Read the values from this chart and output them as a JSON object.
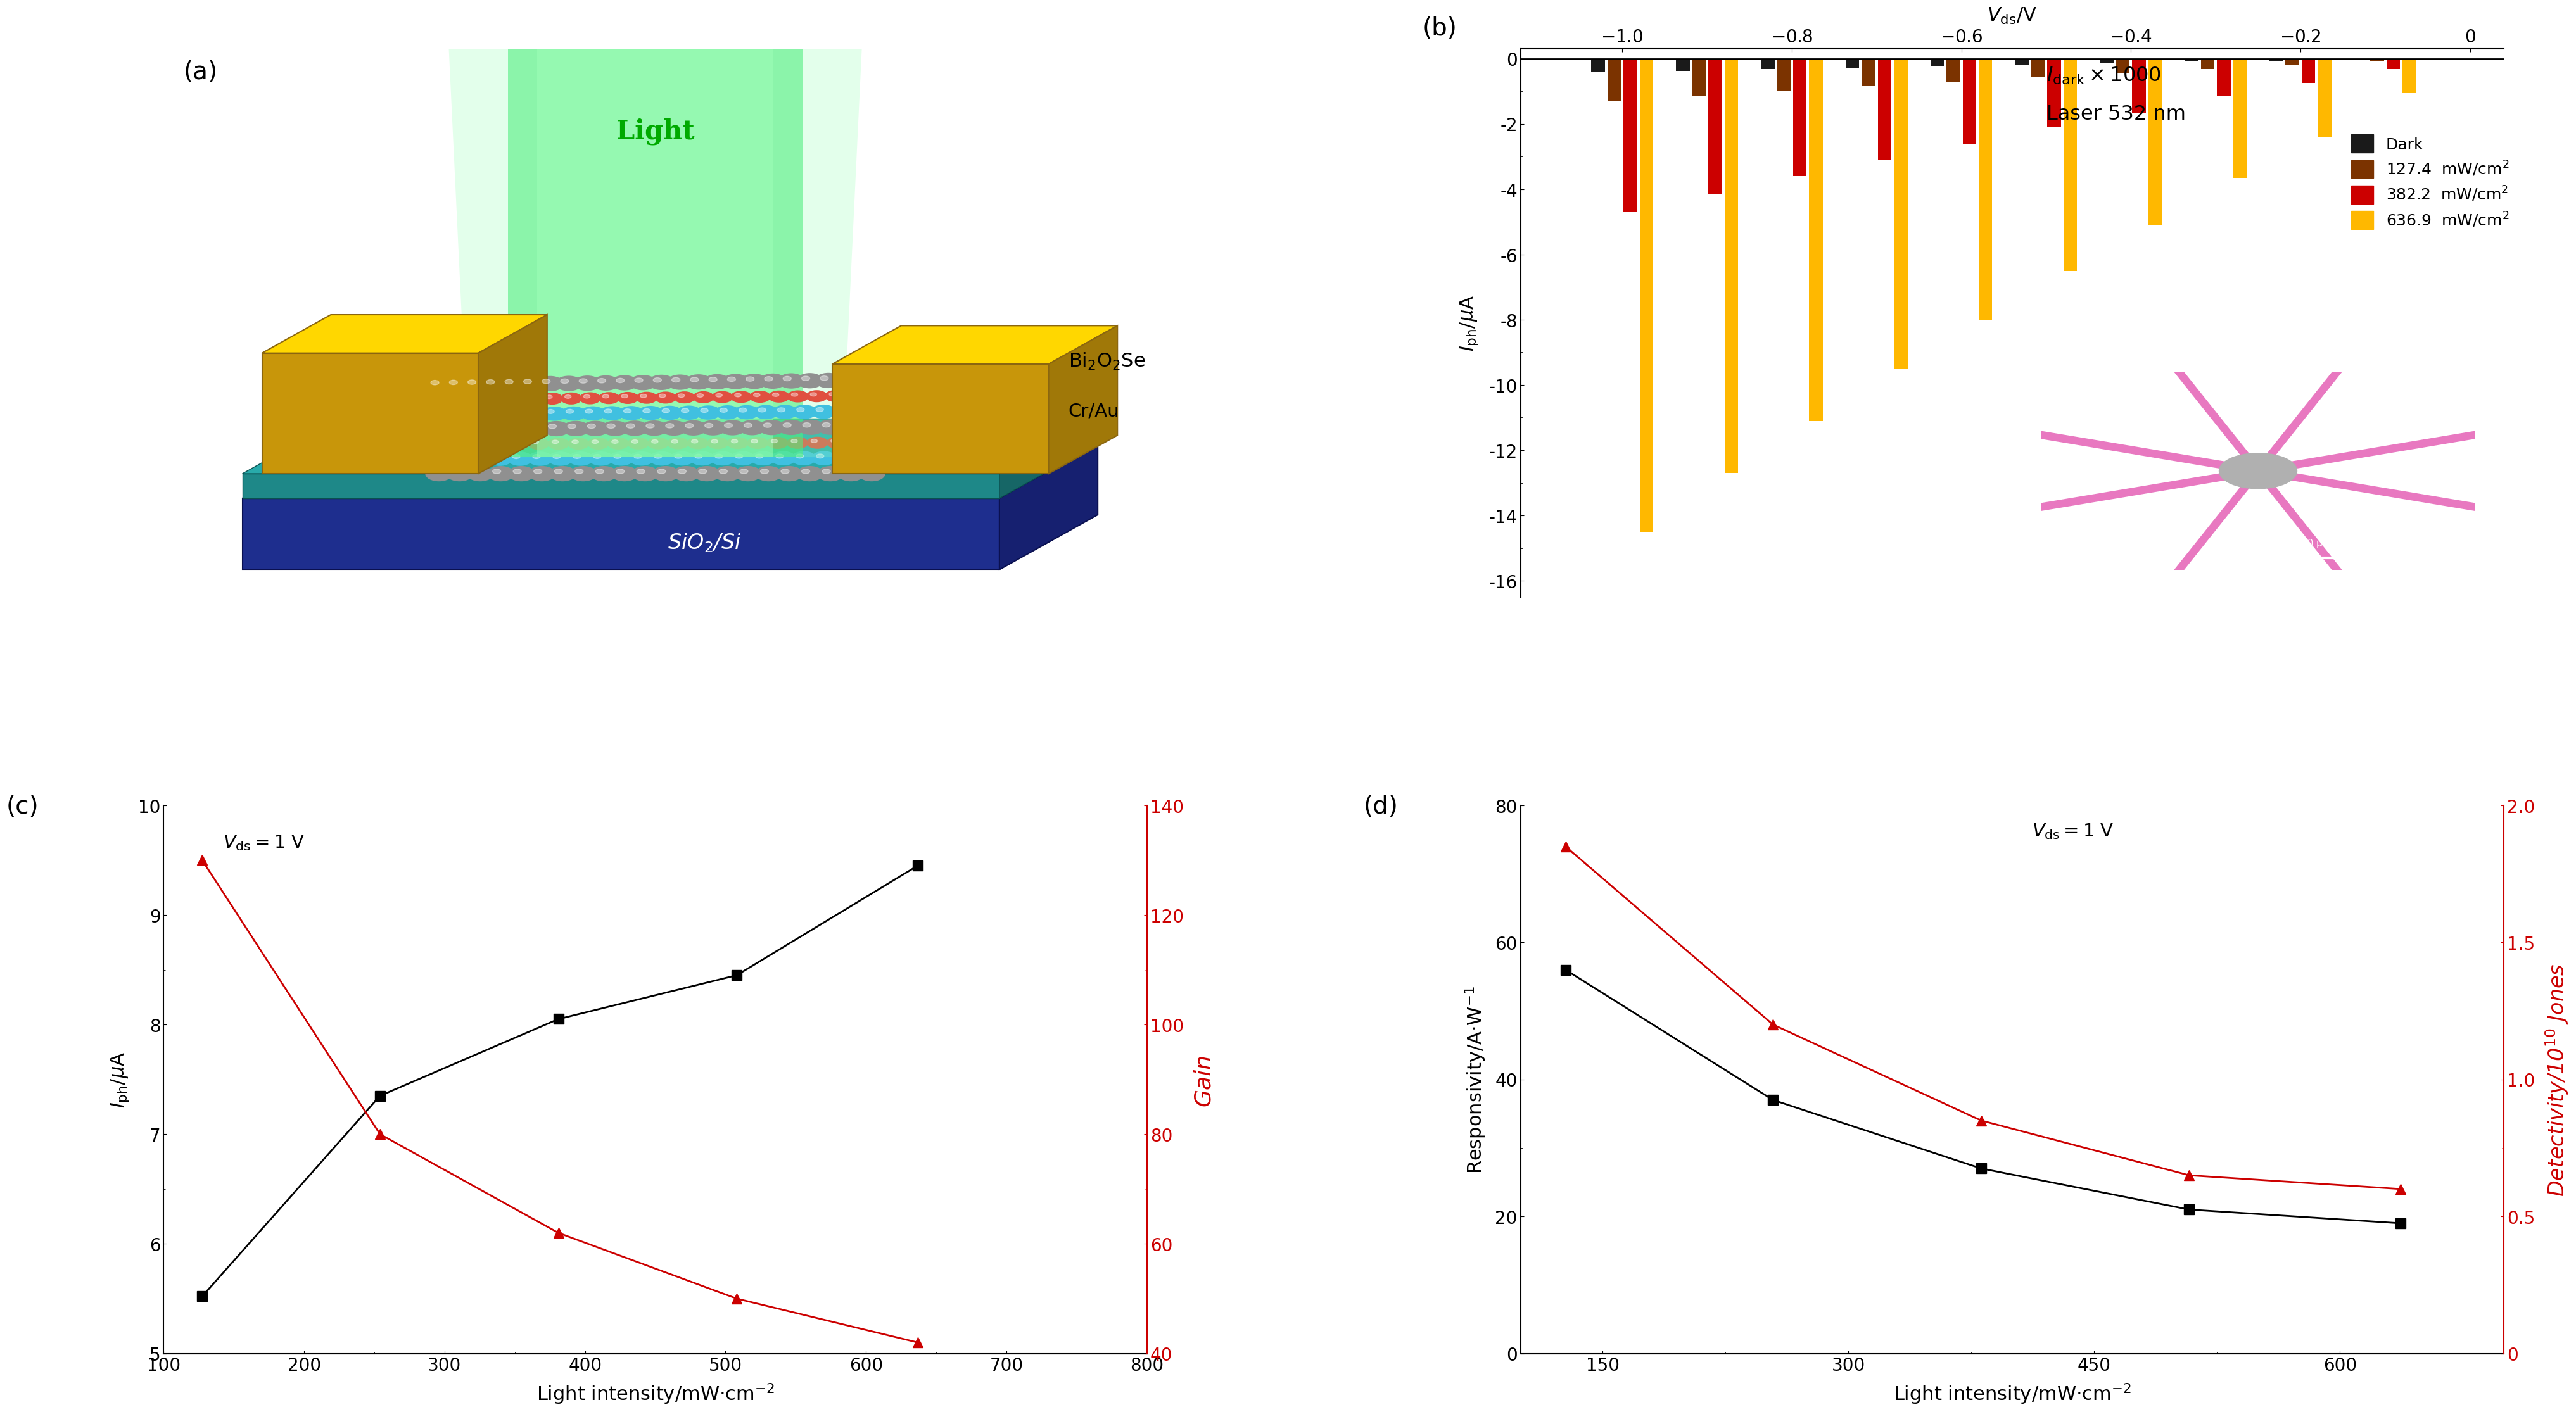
{
  "panel_b": {
    "vds_values": [
      -1.0,
      -0.9,
      -0.8,
      -0.7,
      -0.6,
      -0.5,
      -0.4,
      -0.3,
      -0.2,
      -0.1
    ],
    "dark_currents": [
      -0.42,
      -0.37,
      -0.32,
      -0.27,
      -0.22,
      -0.18,
      -0.13,
      -0.09,
      -0.06,
      -0.02
    ],
    "i127_currents": [
      -1.28,
      -1.13,
      -0.98,
      -0.84,
      -0.7,
      -0.57,
      -0.44,
      -0.31,
      -0.2,
      -0.09
    ],
    "i382_currents": [
      -4.7,
      -4.15,
      -3.6,
      -3.1,
      -2.6,
      -2.1,
      -1.65,
      -1.15,
      -0.75,
      -0.32
    ],
    "i636_currents": [
      -14.5,
      -12.7,
      -11.1,
      -9.5,
      -8.0,
      -6.5,
      -5.1,
      -3.65,
      -2.4,
      -1.05
    ],
    "bar_colors": [
      "#1a1a1a",
      "#7B3300",
      "#CC0000",
      "#FFB800"
    ],
    "bar_width": 0.016,
    "bar_gap": 0.003,
    "ylim": [
      -16.5,
      0.3
    ],
    "yticks": [
      0,
      -2,
      -4,
      -6,
      -8,
      -10,
      -12,
      -14,
      -16
    ],
    "ylabel": "$I_{\\mathrm{ph}}$/$\\mu$A",
    "xtop_label": "$V_{\\mathrm{ds}}$/V",
    "xticks_top": [
      -1.0,
      -0.8,
      -0.6,
      -0.4,
      -0.2,
      0.0
    ],
    "xlim": [
      -1.12,
      0.04
    ],
    "annotation_line1": "$I_{\\mathrm{dark}}\\times1000$",
    "annotation_line2": "Laser 532 nm",
    "legend_labels": [
      "Dark",
      "127.4  mW/cm$^2$",
      "382.2  mW/cm$^2$",
      "636.9  mW/cm$^2$"
    ]
  },
  "panel_c": {
    "x_intensity": [
      127.4,
      254.0,
      381.0,
      508.0,
      636.9
    ],
    "iph_values": [
      5.52,
      7.35,
      8.05,
      8.45,
      9.45
    ],
    "gain_values": [
      130,
      80,
      62,
      50,
      42
    ],
    "xlabel": "Light intensity/mW$\\cdot$cm$^{-2}$",
    "ylabel_left": "$I_{\\mathrm{ph}}$/$\\mu$A",
    "ylabel_right": "Gain",
    "ylim_left": [
      5,
      10
    ],
    "ylim_right": [
      40,
      140
    ],
    "yticks_left": [
      5,
      6,
      7,
      8,
      9,
      10
    ],
    "yticks_right": [
      40,
      60,
      80,
      100,
      120,
      140
    ],
    "xlim": [
      100,
      800
    ],
    "xticks": [
      100,
      200,
      300,
      400,
      500,
      600,
      700,
      800
    ],
    "annotation": "$V_{\\mathrm{ds}}=1$ V"
  },
  "panel_d": {
    "x_intensity": [
      127.4,
      254.0,
      381.0,
      508.0,
      636.9
    ],
    "responsivity_values": [
      56,
      37,
      27,
      21,
      19
    ],
    "detectivity_values": [
      1.85,
      1.2,
      0.85,
      0.65,
      0.6
    ],
    "xlabel": "Light intensity/mW$\\cdot$cm$^{-2}$",
    "ylabel_left": "Responsivity/A$\\cdot$W$^{-1}$",
    "ylabel_right": "Detectivity/10$^{10}$ Jones",
    "ylim_left": [
      0,
      80
    ],
    "ylim_right": [
      0,
      2.0
    ],
    "yticks_left": [
      0,
      20,
      40,
      60,
      80
    ],
    "yticks_right": [
      0,
      0.5,
      1.0,
      1.5,
      2.0
    ],
    "xlim": [
      100,
      700
    ],
    "xticks": [
      150,
      300,
      450,
      600
    ],
    "annotation": "$V_{\\mathrm{ds}}=1$ V"
  },
  "fig_bg": "#ffffff",
  "black": "#000000",
  "red": "#CC0000",
  "fs_label": 22,
  "fs_tick": 20,
  "fs_panel": 24,
  "fs_annot": 21
}
